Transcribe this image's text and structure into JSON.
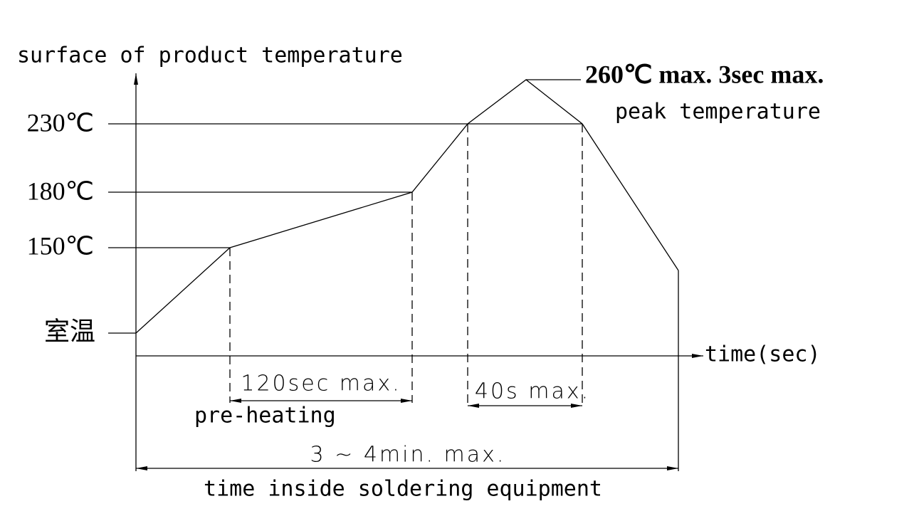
{
  "y_axis_label": "surface of product temperature",
  "levels": [
    "230℃",
    "180℃",
    "150℃",
    "室温"
  ],
  "x_axis_label": "time(sec)",
  "peak_note": "260℃ max. 3sec max.",
  "peak_label": "peak temperature",
  "preheat_time": "120sec max.",
  "preheat_label": "pre-heating",
  "peak_time": "40s max.",
  "total_time": "3 ~ 4min. max.",
  "total_label": "time inside soldering equipment"
}
